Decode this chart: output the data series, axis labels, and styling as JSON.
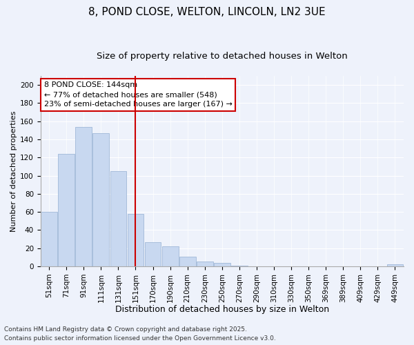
{
  "title": "8, POND CLOSE, WELTON, LINCOLN, LN2 3UE",
  "subtitle": "Size of property relative to detached houses in Welton",
  "xlabel": "Distribution of detached houses by size in Welton",
  "ylabel": "Number of detached properties",
  "categories": [
    "51sqm",
    "71sqm",
    "91sqm",
    "111sqm",
    "131sqm",
    "151sqm",
    "170sqm",
    "190sqm",
    "210sqm",
    "230sqm",
    "250sqm",
    "270sqm",
    "290sqm",
    "310sqm",
    "330sqm",
    "350sqm",
    "369sqm",
    "389sqm",
    "409sqm",
    "429sqm",
    "449sqm"
  ],
  "values": [
    60,
    124,
    154,
    147,
    105,
    58,
    27,
    22,
    11,
    5,
    4,
    1,
    0,
    0,
    0,
    0,
    0,
    0,
    0,
    0,
    2
  ],
  "bar_color": "#c8d8f0",
  "bar_edge_color": "#a0b8d8",
  "vline_x": 5,
  "vline_color": "#cc0000",
  "annotation_title": "8 POND CLOSE: 144sqm",
  "annotation_line1": "← 77% of detached houses are smaller (548)",
  "annotation_line2": "23% of semi-detached houses are larger (167) →",
  "annotation_box_color": "#ffffff",
  "annotation_box_edge": "#cc0000",
  "ylim": [
    0,
    210
  ],
  "yticks": [
    0,
    20,
    40,
    60,
    80,
    100,
    120,
    140,
    160,
    180,
    200
  ],
  "footnote1": "Contains HM Land Registry data © Crown copyright and database right 2025.",
  "footnote2": "Contains public sector information licensed under the Open Government Licence v3.0.",
  "background_color": "#eef2fb",
  "plot_background": "#eef2fb",
  "title_fontsize": 11,
  "subtitle_fontsize": 9.5,
  "xlabel_fontsize": 9,
  "ylabel_fontsize": 8,
  "tick_fontsize": 7.5,
  "annotation_fontsize": 8,
  "footnote_fontsize": 6.5
}
